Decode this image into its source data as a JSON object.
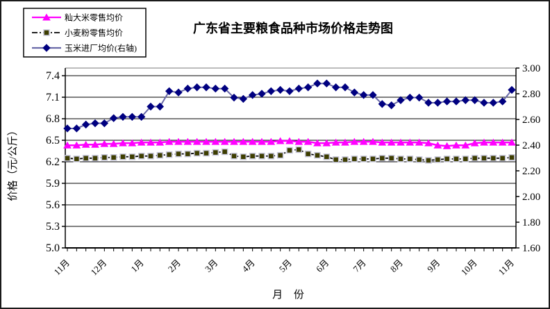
{
  "title": "广东省主要粮食品种市场价格走势图",
  "chart_data": {
    "type": "line",
    "x_axis": {
      "title": "月 份",
      "points_count": 49,
      "tick_labels": [
        "11月",
        "12月",
        "1月",
        "2月",
        "3月",
        "4月",
        "5月",
        "6月",
        "7月",
        "8月",
        "9月",
        "10月",
        "11月"
      ],
      "label_every_n_points": 4,
      "labels_rotation_deg": 45
    },
    "left_axis": {
      "title": "价格（元/公斤）",
      "min": 5.0,
      "max": 7.4,
      "step": 0.3,
      "ticks": [
        "5.0",
        "5.3",
        "5.6",
        "5.9",
        "6.2",
        "6.5",
        "6.8",
        "7.1",
        "7.4"
      ],
      "grid": true
    },
    "right_axis": {
      "min": 1.6,
      "max": 3.0,
      "step": 0.2,
      "ticks": [
        "1.60",
        "1.80",
        "2.00",
        "2.20",
        "2.40",
        "2.60",
        "2.80",
        "3.00"
      ],
      "grid": false
    },
    "legend_position": "top-left",
    "series": [
      {
        "name": "籼大米零售均价",
        "axis": "left",
        "marker": "triangle",
        "line_style": "solid",
        "line_color": "#FF00FF",
        "marker_fill": "#FF00FF",
        "marker_stroke": "#FF00FF",
        "values": [
          6.43,
          6.43,
          6.44,
          6.44,
          6.45,
          6.45,
          6.46,
          6.46,
          6.47,
          6.47,
          6.47,
          6.48,
          6.48,
          6.48,
          6.48,
          6.48,
          6.48,
          6.48,
          6.48,
          6.48,
          6.48,
          6.48,
          6.48,
          6.49,
          6.49,
          6.48,
          6.48,
          6.46,
          6.46,
          6.47,
          6.47,
          6.48,
          6.48,
          6.48,
          6.47,
          6.47,
          6.47,
          6.47,
          6.47,
          6.46,
          6.43,
          6.42,
          6.43,
          6.43,
          6.46,
          6.47,
          6.47,
          6.47,
          6.47
        ]
      },
      {
        "name": "小麦粉零售均价",
        "axis": "left",
        "marker": "square",
        "line_style": "dash-dot",
        "line_color": "#000000",
        "marker_fill": "#3D3D00",
        "marker_stroke": "#C8C8DC",
        "values": [
          6.25,
          6.24,
          6.25,
          6.25,
          6.26,
          6.26,
          6.27,
          6.27,
          6.28,
          6.28,
          6.29,
          6.3,
          6.31,
          6.31,
          6.32,
          6.32,
          6.33,
          6.34,
          6.28,
          6.27,
          6.28,
          6.28,
          6.28,
          6.29,
          6.36,
          6.37,
          6.31,
          6.29,
          6.27,
          6.23,
          6.23,
          6.24,
          6.24,
          6.24,
          6.25,
          6.25,
          6.24,
          6.24,
          6.23,
          6.22,
          6.23,
          6.24,
          6.24,
          6.24,
          6.25,
          6.25,
          6.25,
          6.25,
          6.26
        ]
      },
      {
        "name": "玉米进厂均价(右轴)",
        "axis": "right",
        "marker": "diamond",
        "line_style": "solid",
        "line_color": "#6969A8",
        "marker_fill": "#000080",
        "marker_stroke": "#000080",
        "values": [
          2.53,
          2.53,
          2.56,
          2.57,
          2.57,
          2.61,
          2.62,
          2.62,
          2.62,
          2.7,
          2.7,
          2.82,
          2.81,
          2.84,
          2.85,
          2.85,
          2.84,
          2.84,
          2.77,
          2.76,
          2.79,
          2.8,
          2.82,
          2.83,
          2.82,
          2.84,
          2.85,
          2.88,
          2.88,
          2.85,
          2.85,
          2.81,
          2.79,
          2.79,
          2.72,
          2.71,
          2.75,
          2.77,
          2.77,
          2.73,
          2.73,
          2.74,
          2.74,
          2.75,
          2.75,
          2.73,
          2.73,
          2.74,
          2.83
        ]
      }
    ],
    "colors": {
      "grid_line": "#000000",
      "plot_top_border": "#A6A6A6",
      "axis_line": "#000000",
      "background": "#FFFFFF"
    }
  }
}
